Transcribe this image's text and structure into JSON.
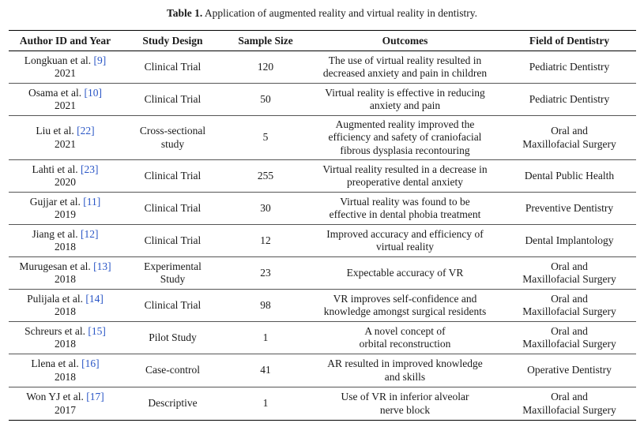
{
  "caption": {
    "label": "Table 1.",
    "text": " Application of augmented reality and virtual reality in dentistry."
  },
  "headers": [
    "Author ID and Year",
    "Study Design",
    "Sample Size",
    "Outcomes",
    "Field of Dentistry"
  ],
  "rows": [
    {
      "author": "Longkuan et al. ",
      "ref": "[9]",
      "year": "2021",
      "design": [
        "Clinical Trial"
      ],
      "sample": "120",
      "outcomes": [
        "The use of virtual reality resulted in",
        "decreased anxiety and pain in children"
      ],
      "field": [
        "Pediatric Dentistry"
      ]
    },
    {
      "author": "Osama et al. ",
      "ref": "[10]",
      "year": "2021",
      "design": [
        "Clinical Trial"
      ],
      "sample": "50",
      "outcomes": [
        "Virtual reality is effective in reducing",
        "anxiety and pain"
      ],
      "field": [
        "Pediatric Dentistry"
      ]
    },
    {
      "author": "Liu et al. ",
      "ref": "[22]",
      "year": "2021",
      "design": [
        "Cross-sectional",
        "study"
      ],
      "sample": "5",
      "outcomes": [
        "Augmented reality improved the",
        "efficiency and safety of craniofacial",
        "fibrous dysplasia recontouring"
      ],
      "field": [
        "Oral and",
        "Maxillofacial Surgery"
      ]
    },
    {
      "author": "Lahti et al. ",
      "ref": "[23]",
      "year": "2020",
      "design": [
        "Clinical Trial"
      ],
      "sample": "255",
      "outcomes": [
        "Virtual reality resulted in a decrease in",
        "preoperative dental anxiety"
      ],
      "field": [
        "Dental Public Health"
      ]
    },
    {
      "author": "Gujjar et al. ",
      "ref": "[11]",
      "year": "2019",
      "design": [
        "Clinical Trial"
      ],
      "sample": "30",
      "outcomes": [
        "Virtual reality was found to be",
        "effective in dental phobia treatment"
      ],
      "field": [
        "Preventive Dentistry"
      ]
    },
    {
      "author": "Jiang et al. ",
      "ref": "[12]",
      "year": "2018",
      "design": [
        "Clinical Trial"
      ],
      "sample": "12",
      "outcomes": [
        "Improved accuracy and efficiency of",
        "virtual reality"
      ],
      "field": [
        "Dental Implantology"
      ]
    },
    {
      "author": "Murugesan et al. ",
      "ref": "[13]",
      "year": "2018",
      "design": [
        "Experimental",
        "Study"
      ],
      "sample": "23",
      "outcomes": [
        "Expectable accuracy of VR"
      ],
      "field": [
        "Oral and",
        "Maxillofacial Surgery"
      ]
    },
    {
      "author": "Pulijala et al. ",
      "ref": "[14]",
      "year": "2018",
      "design": [
        "Clinical Trial"
      ],
      "sample": "98",
      "outcomes": [
        "VR improves self-confidence and",
        "knowledge amongst surgical residents"
      ],
      "field": [
        "Oral and",
        "Maxillofacial Surgery"
      ]
    },
    {
      "author": "Schreurs et al. ",
      "ref": "[15]",
      "year": "2018",
      "design": [
        "Pilot Study"
      ],
      "sample": "1",
      "outcomes": [
        "A novel concept of",
        "orbital reconstruction"
      ],
      "field": [
        "Oral and",
        "Maxillofacial Surgery"
      ]
    },
    {
      "author": "Llena et al. ",
      "ref": "[16]",
      "year": "2018",
      "design": [
        "Case-control"
      ],
      "sample": "41",
      "outcomes": [
        "AR resulted in improved knowledge",
        "and skills"
      ],
      "field": [
        "Operative Dentistry"
      ]
    },
    {
      "author": "Won YJ et al. ",
      "ref": "[17]",
      "year": "2017",
      "design": [
        "Descriptive"
      ],
      "sample": "1",
      "outcomes": [
        "Use of VR in inferior alveolar",
        "nerve block"
      ],
      "field": [
        "Oral and",
        "Maxillofacial Surgery"
      ]
    }
  ]
}
